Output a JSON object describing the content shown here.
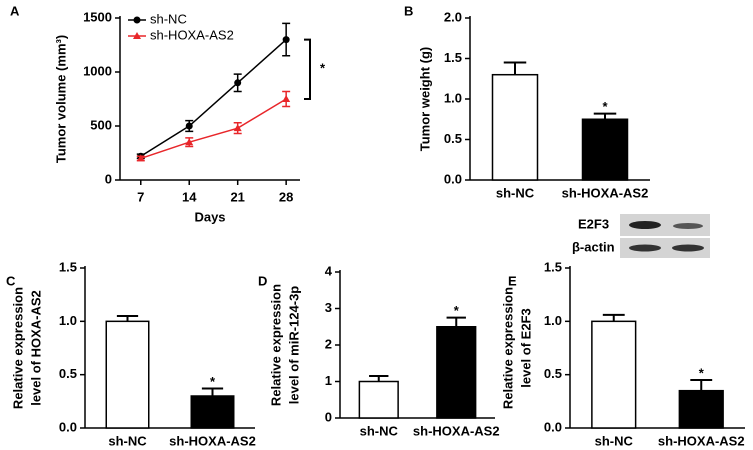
{
  "chart_data": [
    {
      "type": "line",
      "label": "A",
      "xlabel": "Days",
      "ylabel": "Tumor volume (mm³)",
      "x": [
        7,
        14,
        21,
        28
      ],
      "xlim": [
        4,
        30
      ],
      "xticks": [
        7,
        14,
        21,
        28
      ],
      "ylim": [
        0,
        1500
      ],
      "yticks": [
        0,
        500,
        1000,
        1500
      ],
      "legend": "upper left",
      "annotation": "*",
      "series": [
        {
          "name": "sh-NC",
          "color": "#000000",
          "marker": "circle",
          "values": [
            220,
            500,
            900,
            1300
          ],
          "errors": [
            20,
            50,
            80,
            150
          ]
        },
        {
          "name": "sh-HOXA-AS2",
          "color": "#e8262a",
          "marker": "triangle",
          "values": [
            200,
            350,
            480,
            750
          ],
          "errors": [
            20,
            40,
            50,
            70
          ]
        }
      ]
    },
    {
      "type": "bar",
      "label": "B",
      "ylabel": [
        "Tumor weight (g)"
      ],
      "categories": [
        "sh-NC",
        "sh-HOXA-AS2"
      ],
      "values": [
        1.3,
        0.75
      ],
      "errors": [
        0.15,
        0.07
      ],
      "colors": [
        "#ffffff",
        "#000000"
      ],
      "annotation": "*",
      "ylim": [
        0,
        2
      ],
      "yticks": [
        {
          "value": 0,
          "label": "0.0"
        },
        0.5,
        {
          "value": 1,
          "label": "1.0"
        },
        1.5,
        {
          "value": 2,
          "label": "2.0"
        }
      ]
    },
    {
      "type": "bar",
      "label": "C",
      "ylabel": [
        "Relative expression",
        "level of HOXA-AS2"
      ],
      "categories": [
        "sh-NC",
        "sh-HOXA-AS2"
      ],
      "values": [
        1.0,
        0.3
      ],
      "errors": [
        0.05,
        0.07
      ],
      "colors": [
        "#ffffff",
        "#000000"
      ],
      "annotation": "*",
      "ylim": [
        0,
        1.5
      ],
      "yticks": [
        {
          "value": 0,
          "label": "0.0"
        },
        0.5,
        {
          "value": 1,
          "label": "1.0"
        },
        1.5
      ]
    },
    {
      "type": "bar",
      "label": "D",
      "ylabel": [
        "Relative expression",
        "level of miR-124-3p"
      ],
      "categories": [
        "sh-NC",
        "sh-HOXA-AS2"
      ],
      "values": [
        1.0,
        2.5
      ],
      "errors": [
        0.15,
        0.25
      ],
      "colors": [
        "#ffffff",
        "#000000"
      ],
      "annotation": "*",
      "ylim": [
        0,
        4
      ],
      "yticks": [
        0,
        1,
        2,
        3,
        4
      ]
    },
    {
      "type": "bar",
      "label": "E",
      "ylabel": [
        "Relative expression",
        "level of E2F3"
      ],
      "categories": [
        "sh-NC",
        "sh-HOXA-AS2"
      ],
      "values": [
        1.0,
        0.35
      ],
      "errors": [
        0.06,
        0.1
      ],
      "colors": [
        "#ffffff",
        "#000000"
      ],
      "annotation": "*",
      "ylim": [
        0,
        1.5
      ],
      "yticks": [
        {
          "value": 0,
          "label": "0.0"
        },
        0.5,
        {
          "value": 1,
          "label": "1.0"
        },
        1.5
      ],
      "blot_labels": [
        "E2F3",
        "β-actin"
      ]
    }
  ]
}
